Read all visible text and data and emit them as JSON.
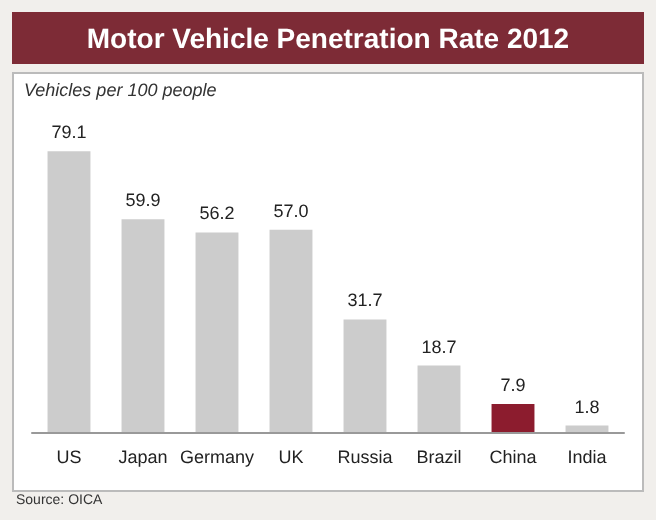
{
  "chart_data": {
    "type": "bar",
    "title": "Motor Vehicle Penetration Rate 2012",
    "subtitle": "Vehicles per 100 people",
    "categories": [
      "US",
      "Japan",
      "Germany",
      "UK",
      "Russia",
      "Brazil",
      "China",
      "India"
    ],
    "values": [
      79.1,
      59.9,
      56.2,
      57.0,
      31.7,
      18.7,
      7.9,
      1.8
    ],
    "colors": [
      "#cccccc",
      "#cccccc",
      "#cccccc",
      "#cccccc",
      "#cccccc",
      "#cccccc",
      "#8c1c2e",
      "#cccccc"
    ],
    "value_labels": [
      "79.1",
      "59.9",
      "56.2",
      "57.0",
      "31.7",
      "18.7",
      "7.9",
      "1.8"
    ],
    "annotations": [
      "Source: OICA"
    ]
  }
}
